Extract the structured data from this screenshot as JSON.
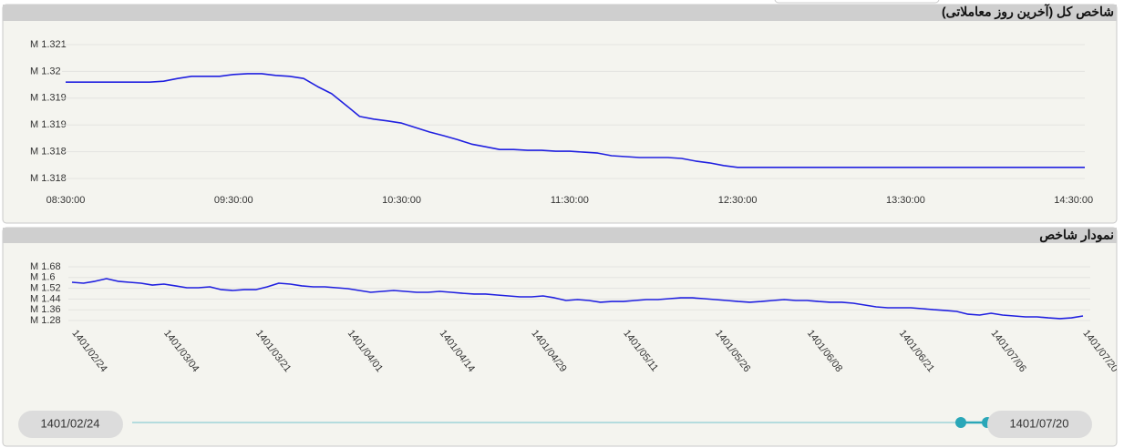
{
  "chart_data": [
    {
      "type": "line",
      "title": "شاخص کل (آخرین روز معاملاتی)",
      "color": "#2020e0",
      "x": [
        "08:30:00",
        "09:00:00",
        "09:05:00",
        "09:10:00",
        "09:15:00",
        "09:25:00",
        "09:30:00",
        "09:35:00",
        "09:40:00",
        "09:45:00",
        "09:50:00",
        "09:55:00",
        "10:00:00",
        "10:05:00",
        "10:10:00",
        "10:15:00",
        "10:20:00",
        "10:25:00",
        "10:30:00",
        "10:35:00",
        "10:40:00",
        "10:45:00",
        "10:50:00",
        "10:55:00",
        "11:00:00",
        "11:05:00",
        "11:10:00",
        "11:15:00",
        "11:20:00",
        "11:25:00",
        "11:30:00",
        "11:35:00",
        "11:40:00",
        "11:45:00",
        "11:50:00",
        "11:55:00",
        "12:00:00",
        "12:05:00",
        "12:10:00",
        "12:15:00",
        "12:20:00",
        "12:25:00",
        "12:30:00",
        "14:34:00"
      ],
      "values": [
        1.31976,
        1.31976,
        1.31978,
        1.31984,
        1.31989,
        1.31989,
        1.31993,
        1.31995,
        1.31995,
        1.31991,
        1.31989,
        1.31984,
        1.31966,
        1.3195,
        1.31925,
        1.31899,
        1.31893,
        1.31889,
        1.31884,
        1.31874,
        1.31864,
        1.31856,
        1.31847,
        1.31837,
        1.31831,
        1.31825,
        1.31825,
        1.31823,
        1.31823,
        1.31821,
        1.31821,
        1.31819,
        1.31817,
        1.31811,
        1.31809,
        1.31807,
        1.31807,
        1.31807,
        1.31805,
        1.31799,
        1.31795,
        1.31789,
        1.31785,
        1.31785
      ],
      "xlim": [
        "08:30:00",
        "14:34:00"
      ],
      "xticks": [
        "08:30:00",
        "09:30:00",
        "10:30:00",
        "11:30:00",
        "12:30:00",
        "13:30:00",
        "14:30:00"
      ],
      "ylim": [
        1.3176,
        1.3206
      ],
      "yticks": [
        {
          "value": 1.3176,
          "label": "M 1.318"
        },
        {
          "value": 1.3182,
          "label": "M 1.318"
        },
        {
          "value": 1.3188,
          "label": "M 1.319"
        },
        {
          "value": 1.3194,
          "label": "M 1.319"
        },
        {
          "value": 1.32,
          "label": "M 1.32"
        },
        {
          "value": 1.3206,
          "label": "M 1.321"
        }
      ],
      "grid": true
    },
    {
      "type": "line",
      "title": "نمودار شاخص",
      "color": "#2020e0",
      "categories": [
        "1401/02/24",
        null,
        null,
        null,
        null,
        null,
        null,
        null,
        "1401/03/04",
        null,
        null,
        null,
        null,
        null,
        null,
        null,
        "1401/03/21",
        null,
        null,
        null,
        null,
        null,
        null,
        null,
        "1401/04/01",
        null,
        null,
        null,
        null,
        null,
        null,
        null,
        "1401/04/14",
        null,
        null,
        null,
        null,
        null,
        null,
        null,
        "1401/04/29",
        null,
        null,
        null,
        null,
        null,
        null,
        null,
        "1401/05/11",
        null,
        null,
        null,
        null,
        null,
        null,
        null,
        "1401/05/26",
        null,
        null,
        null,
        null,
        null,
        null,
        null,
        "1401/06/08",
        null,
        null,
        null,
        null,
        null,
        null,
        null,
        "1401/06/21",
        null,
        null,
        null,
        null,
        null,
        null,
        null,
        "1401/07/06",
        null,
        null,
        null,
        null,
        null,
        null,
        null,
        "1401/07/20"
      ],
      "values": [
        1.565,
        1.558,
        1.572,
        1.592,
        1.572,
        1.565,
        1.558,
        1.544,
        1.551,
        1.538,
        1.524,
        1.524,
        1.531,
        1.51,
        1.504,
        1.51,
        1.51,
        1.531,
        1.558,
        1.551,
        1.538,
        1.531,
        1.531,
        1.524,
        1.517,
        1.504,
        1.49,
        1.497,
        1.504,
        1.497,
        1.49,
        1.49,
        1.497,
        1.49,
        1.483,
        1.477,
        1.477,
        1.47,
        1.463,
        1.456,
        1.456,
        1.463,
        1.449,
        1.429,
        1.436,
        1.429,
        1.416,
        1.422,
        1.422,
        1.429,
        1.436,
        1.436,
        1.443,
        1.449,
        1.449,
        1.443,
        1.436,
        1.429,
        1.422,
        1.416,
        1.422,
        1.429,
        1.436,
        1.429,
        1.429,
        1.422,
        1.416,
        1.416,
        1.409,
        1.395,
        1.382,
        1.375,
        1.375,
        1.375,
        1.368,
        1.361,
        1.355,
        1.348,
        1.327,
        1.321,
        1.334,
        1.321,
        1.314,
        1.307,
        1.307,
        1.3,
        1.294,
        1.3,
        1.314
      ],
      "ylim": [
        1.28,
        1.68
      ],
      "yticks": [
        {
          "value": 1.28,
          "label": "M 1.28"
        },
        {
          "value": 1.36,
          "label": "M 1.36"
        },
        {
          "value": 1.44,
          "label": "M 1.44"
        },
        {
          "value": 1.52,
          "label": "M 1.52"
        },
        {
          "value": 1.6,
          "label": "M 1.6"
        },
        {
          "value": 1.68,
          "label": "M 1.68"
        }
      ],
      "grid": true
    }
  ],
  "slider": {
    "start": "1401/02/24",
    "end": "1401/07/20"
  }
}
